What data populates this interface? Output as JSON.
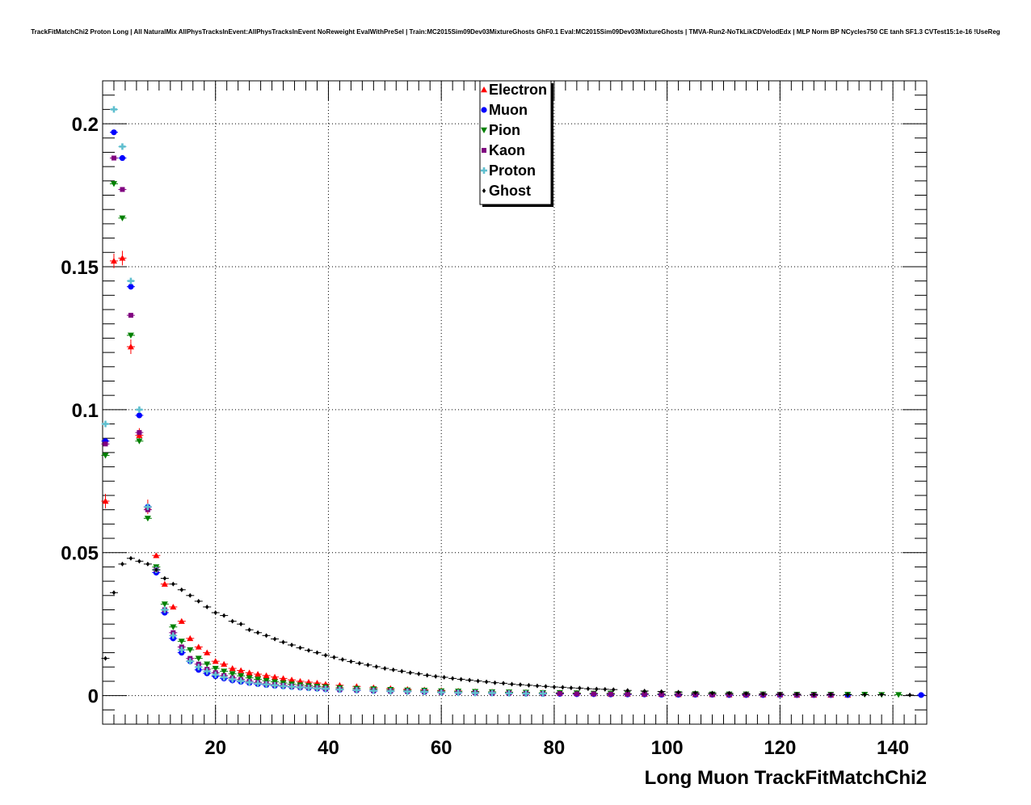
{
  "chart_data": {
    "type": "scatter",
    "title": "TrackFitMatchChi2 Proton Long | All NaturalMix AllPhysTracksInEvent:AllPhysTracksInEvent NoReweight EvalWithPreSel | Train:MC2015Sim09Dev03MixtureGhosts GhF0.1 Eval:MC2015Sim09Dev03MixtureGhosts | TMVA-Run2-NoTkLikCDVelodEdx | MLP Norm BP NCycles750 CE tanh SF1.3 CVTest15:1e-16 !UseReg",
    "xlabel": "Long Muon TrackFitMatchChi2",
    "ylabel": "",
    "xlim": [
      0,
      146
    ],
    "ylim": [
      -0.01,
      0.215
    ],
    "xticks": [
      20,
      40,
      60,
      80,
      100,
      120,
      140
    ],
    "yticks": [
      0,
      0.05,
      0.1,
      0.15,
      0.2
    ],
    "ytick_labels": [
      "0",
      "0.05",
      "0.1",
      "0.15",
      "0.2"
    ],
    "grid": true,
    "legend_position": "top-center",
    "series": [
      {
        "name": "Electron",
        "color": "#ff0000",
        "marker": "triangle-up",
        "x": [
          0.5,
          2,
          3.5,
          5,
          6.5,
          8,
          9.5,
          11,
          12.5,
          14,
          15.5,
          17,
          18.5,
          20,
          21.5,
          23,
          24.5,
          26,
          27.5,
          29,
          30.5,
          32,
          33.5,
          35,
          36.5,
          38,
          39.5,
          42,
          45,
          48,
          51,
          54,
          57,
          60,
          63,
          66,
          69,
          72,
          75,
          78,
          81,
          84,
          87,
          90,
          93,
          96,
          99,
          102,
          105,
          108,
          111,
          114,
          117,
          120,
          123,
          126,
          129,
          132
        ],
        "y": [
          0.068,
          0.152,
          0.153,
          0.122,
          0.091,
          0.066,
          0.049,
          0.039,
          0.031,
          0.026,
          0.02,
          0.017,
          0.015,
          0.012,
          0.011,
          0.0095,
          0.0088,
          0.008,
          0.0075,
          0.007,
          0.0065,
          0.006,
          0.0055,
          0.005,
          0.0047,
          0.0044,
          0.004,
          0.0036,
          0.0032,
          0.0028,
          0.0025,
          0.0022,
          0.002,
          0.0018,
          0.0016,
          0.0014,
          0.0013,
          0.0012,
          0.0011,
          0.001,
          0.0009,
          0.0008,
          0.0007,
          0.0006,
          0.0006,
          0.0005,
          0.0005,
          0.0004,
          0.0004,
          0.0004,
          0.0003,
          0.0003,
          0.0003,
          0.0003,
          0.0002,
          0.0002,
          0.0002,
          0.0002
        ]
      },
      {
        "name": "Muon",
        "color": "#0000ff",
        "marker": "circle",
        "x": [
          0.5,
          2,
          3.5,
          5,
          6.5,
          8,
          9.5,
          11,
          12.5,
          14,
          15.5,
          17,
          18.5,
          20,
          21.5,
          23,
          24.5,
          26,
          27.5,
          29,
          30.5,
          32,
          33.5,
          35,
          36.5,
          38,
          39.5,
          42,
          45,
          48,
          51,
          54,
          57,
          60,
          63,
          66,
          69,
          72,
          75,
          78,
          81,
          84,
          87,
          90,
          93,
          96,
          99,
          102,
          105,
          108,
          111,
          114,
          117,
          120,
          123,
          126,
          129,
          132,
          145
        ],
        "y": [
          0.089,
          0.197,
          0.188,
          0.143,
          0.098,
          0.066,
          0.043,
          0.029,
          0.02,
          0.015,
          0.012,
          0.009,
          0.0078,
          0.0068,
          0.006,
          0.0053,
          0.0048,
          0.0044,
          0.004,
          0.0037,
          0.0034,
          0.0032,
          0.003,
          0.0028,
          0.0026,
          0.0024,
          0.0022,
          0.002,
          0.0018,
          0.0016,
          0.0015,
          0.0014,
          0.0012,
          0.0011,
          0.001,
          0.0009,
          0.0008,
          0.0008,
          0.0007,
          0.0006,
          0.0006,
          0.0005,
          0.0005,
          0.0004,
          0.0004,
          0.0004,
          0.0003,
          0.0003,
          0.0003,
          0.0003,
          0.0002,
          0.0002,
          0.0002,
          0.0002,
          0.0002,
          0.0002,
          0.0002,
          0.0002,
          0.0002
        ]
      },
      {
        "name": "Pion",
        "color": "#008000",
        "marker": "triangle-down",
        "x": [
          0.5,
          2,
          3.5,
          5,
          6.5,
          8,
          9.5,
          11,
          12.5,
          14,
          15.5,
          17,
          18.5,
          20,
          21.5,
          23,
          24.5,
          26,
          27.5,
          29,
          30.5,
          32,
          33.5,
          35,
          36.5,
          38,
          39.5,
          42,
          45,
          48,
          51,
          54,
          57,
          60,
          63,
          66,
          69,
          72,
          75,
          78,
          81,
          84,
          87,
          90,
          93,
          96,
          99,
          102,
          105,
          108,
          111,
          114,
          117,
          120,
          123,
          126,
          129,
          132,
          135,
          138,
          141
        ],
        "y": [
          0.084,
          0.179,
          0.167,
          0.126,
          0.089,
          0.062,
          0.045,
          0.032,
          0.024,
          0.019,
          0.016,
          0.013,
          0.011,
          0.0095,
          0.0085,
          0.0076,
          0.0069,
          0.0062,
          0.0057,
          0.0052,
          0.0048,
          0.0044,
          0.004,
          0.0037,
          0.0034,
          0.0032,
          0.003,
          0.0027,
          0.0025,
          0.0023,
          0.0021,
          0.0019,
          0.0018,
          0.0016,
          0.0015,
          0.0014,
          0.0013,
          0.0012,
          0.0011,
          0.001,
          0.001,
          0.0009,
          0.0008,
          0.0008,
          0.0007,
          0.0007,
          0.0006,
          0.0006,
          0.0006,
          0.0005,
          0.0005,
          0.0005,
          0.0005,
          0.0004,
          0.0004,
          0.0004,
          0.0004,
          0.0004,
          0.0004,
          0.0003,
          0.0003
        ]
      },
      {
        "name": "Kaon",
        "color": "#800080",
        "marker": "square",
        "x": [
          0.5,
          2,
          3.5,
          5,
          6.5,
          8,
          9.5,
          11,
          12.5,
          14,
          15.5,
          17,
          18.5,
          20,
          21.5,
          23,
          24.5,
          26,
          27.5,
          29,
          30.5,
          32,
          33.5,
          35,
          36.5,
          38,
          39.5,
          42,
          45,
          48,
          51,
          54,
          57,
          60,
          63,
          66,
          69,
          72,
          75,
          78,
          81,
          84,
          87,
          90,
          93,
          96,
          99,
          102,
          105,
          108,
          111,
          114,
          117,
          120,
          123,
          126,
          129
        ],
        "y": [
          0.088,
          0.188,
          0.177,
          0.133,
          0.092,
          0.065,
          0.044,
          0.03,
          0.022,
          0.017,
          0.013,
          0.011,
          0.0092,
          0.008,
          0.007,
          0.0062,
          0.0056,
          0.005,
          0.0046,
          0.0042,
          0.0039,
          0.0036,
          0.0033,
          0.0031,
          0.0029,
          0.0027,
          0.0025,
          0.0022,
          0.002,
          0.0018,
          0.0016,
          0.0015,
          0.0014,
          0.0012,
          0.0011,
          0.001,
          0.0009,
          0.0009,
          0.0008,
          0.0007,
          0.0007,
          0.0006,
          0.0006,
          0.0005,
          0.0005,
          0.0005,
          0.0004,
          0.0004,
          0.0004,
          0.0003,
          0.0003,
          0.0003,
          0.0003,
          0.0003,
          0.0002,
          0.0002,
          0.0002
        ]
      },
      {
        "name": "Proton",
        "color": "#5fbfcf",
        "marker": "cross",
        "x": [
          0.5,
          2,
          3.5,
          5,
          6.5,
          8,
          9.5,
          11,
          12.5,
          14,
          15.5,
          17,
          18.5,
          20,
          21.5,
          23,
          24.5,
          26,
          27.5,
          29,
          30.5,
          32,
          33.5,
          35,
          36.5,
          38,
          39.5,
          42,
          45,
          48,
          51,
          54,
          57,
          60,
          63,
          66,
          69,
          72,
          75,
          78
        ],
        "y": [
          0.095,
          0.205,
          0.192,
          0.145,
          0.1,
          0.066,
          0.044,
          0.03,
          0.021,
          0.016,
          0.012,
          0.01,
          0.0085,
          0.0073,
          0.0064,
          0.0057,
          0.0051,
          0.0046,
          0.0042,
          0.0039,
          0.0036,
          0.0033,
          0.0031,
          0.0029,
          0.0027,
          0.0025,
          0.0024,
          0.0021,
          0.0019,
          0.0017,
          0.0015,
          0.0014,
          0.0013,
          0.0011,
          0.001,
          0.0009,
          0.0009,
          0.0008,
          0.0007,
          0.0007
        ]
      },
      {
        "name": "Ghost",
        "color": "#000000",
        "marker": "diamond",
        "x": [
          0.5,
          2,
          3.5,
          5,
          6.5,
          8,
          9.5,
          11,
          12.5,
          14,
          15.5,
          17,
          18.5,
          20,
          21.5,
          23,
          24.5,
          26,
          27.5,
          29,
          30.5,
          32,
          33.5,
          35,
          36.5,
          38,
          39.5,
          41,
          42.5,
          44,
          45.5,
          47,
          48.5,
          50,
          51.5,
          53,
          54.5,
          56,
          57.5,
          59,
          60.5,
          62,
          63.5,
          65,
          66.5,
          68,
          69.5,
          71,
          72.5,
          74,
          75.5,
          77,
          78.5,
          80,
          81.5,
          83,
          84.5,
          86,
          87.5,
          89,
          90.5,
          93,
          96,
          99,
          102,
          105,
          108,
          111,
          114,
          117,
          120,
          123,
          126,
          129,
          132,
          135,
          138,
          143
        ],
        "y": [
          0.013,
          0.036,
          0.046,
          0.048,
          0.047,
          0.046,
          0.044,
          0.041,
          0.039,
          0.037,
          0.035,
          0.033,
          0.031,
          0.029,
          0.028,
          0.026,
          0.025,
          0.023,
          0.022,
          0.021,
          0.0198,
          0.0187,
          0.0177,
          0.0167,
          0.0158,
          0.015,
          0.0141,
          0.0134,
          0.0126,
          0.0119,
          0.0113,
          0.0107,
          0.0101,
          0.0095,
          0.009,
          0.0085,
          0.008,
          0.0076,
          0.0071,
          0.0067,
          0.0064,
          0.006,
          0.0057,
          0.0054,
          0.0051,
          0.0048,
          0.0045,
          0.0043,
          0.004,
          0.0038,
          0.0036,
          0.0034,
          0.0032,
          0.003,
          0.0029,
          0.0027,
          0.0026,
          0.0024,
          0.0023,
          0.0022,
          0.0021,
          0.0018,
          0.0016,
          0.0014,
          0.0012,
          0.001,
          0.0009,
          0.0008,
          0.0007,
          0.0006,
          0.0005,
          0.0005,
          0.0004,
          0.0004,
          0.0003,
          0.0003,
          0.0003,
          0.0002
        ]
      }
    ]
  }
}
